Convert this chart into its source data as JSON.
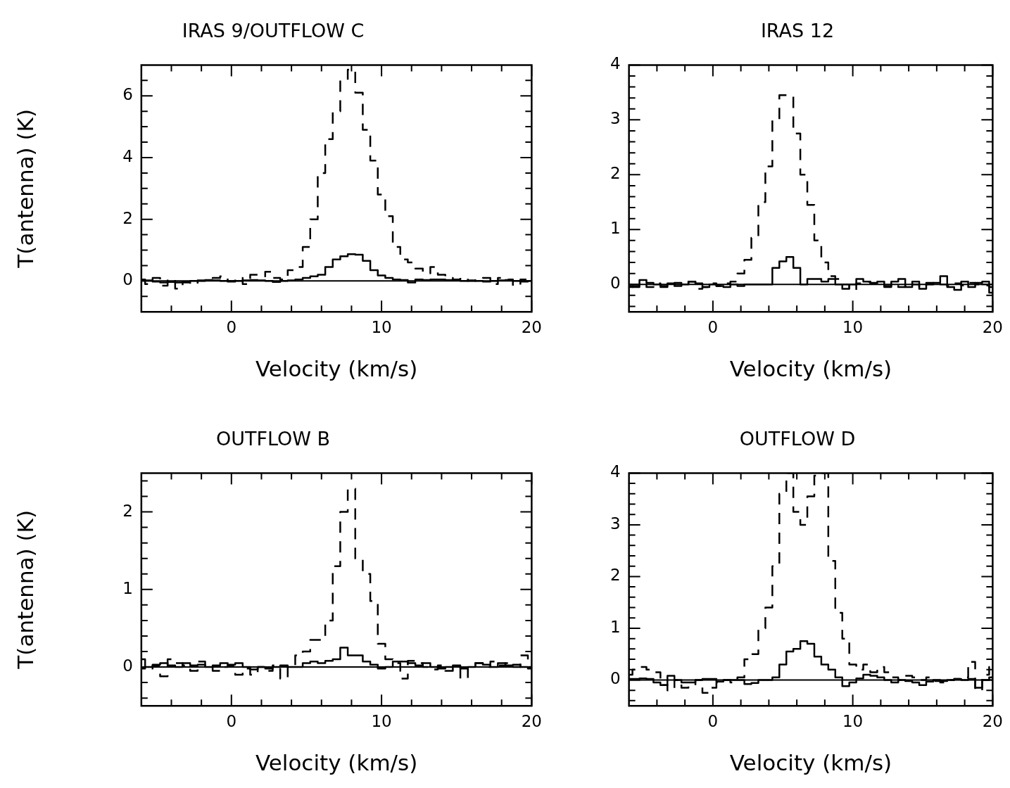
{
  "chart_data": [
    {
      "type": "step",
      "title": "IRAS 9/OUTFLOW C",
      "xlabel": "Velocity (km/s)",
      "ylabel": "T(antenna) (K)",
      "x": [
        -6,
        -5.5,
        -5,
        -4.5,
        -4,
        -3.5,
        -3,
        -2.5,
        -2,
        -1.5,
        -1,
        -0.5,
        0,
        0.5,
        1,
        1.5,
        2,
        2.5,
        3,
        3.5,
        4,
        4.5,
        5,
        5.5,
        6,
        6.5,
        7,
        7.5,
        8,
        8.5,
        9,
        9.5,
        10,
        10.5,
        11,
        11.5,
        12,
        12.5,
        13,
        13.5,
        14,
        14.5,
        15,
        15.5,
        16,
        16.5,
        17,
        17.5,
        18,
        18.5,
        19,
        19.5,
        20
      ],
      "series": [
        {
          "color": "#000000",
          "line_style": "dashed",
          "values": [
            0.05,
            -0.1,
            0.1,
            -0.15,
            0.05,
            -0.25,
            -0.05,
            -0.1,
            0,
            0.05,
            0.1,
            0.15,
            0,
            0.1,
            -0.1,
            0.2,
            0.15,
            0.3,
            0.1,
            0.05,
            0.35,
            0.45,
            1.1,
            2,
            3.5,
            4.6,
            5.5,
            6.5,
            6.85,
            6.1,
            4.9,
            3.9,
            2.8,
            2.1,
            1.1,
            0.7,
            0.6,
            0.4,
            0.25,
            0.45,
            0.2,
            0.1,
            0.05,
            0.1,
            0,
            0.05,
            0.1,
            -0.1,
            0.1,
            0.05,
            -0.15,
            0.05,
            0.05
          ]
        },
        {
          "color": "#000000",
          "line_style": "solid",
          "values": [
            0.03,
            0.02,
            -0.02,
            -0.05,
            -0.03,
            -0.05,
            -0.03,
            0,
            0.02,
            0.03,
            0.02,
            0,
            -0.02,
            0,
            0.02,
            0.03,
            0.02,
            0,
            -0.03,
            0,
            0.02,
            0.05,
            0.1,
            0.15,
            0.2,
            0.45,
            0.7,
            0.8,
            0.87,
            0.85,
            0.65,
            0.35,
            0.18,
            0.1,
            0.05,
            0.03,
            -0.05,
            0.05,
            0.03,
            0.05,
            0.05,
            0.03,
            0.02,
            0,
            0.02,
            0,
            -0.02,
            0,
            0.02,
            0.03,
            0,
            -0.02,
            0
          ]
        }
      ],
      "xlim": [
        -6,
        20
      ],
      "ylim": [
        -1,
        7
      ],
      "xticks": [
        {
          "value": -4,
          "label": null
        },
        {
          "value": -2,
          "label": null
        },
        0,
        {
          "value": 2,
          "label": null
        },
        {
          "value": 4,
          "label": null
        },
        {
          "value": 6,
          "label": null
        },
        {
          "value": 8,
          "label": null
        },
        10,
        {
          "value": 12,
          "label": null
        },
        {
          "value": 14,
          "label": null
        },
        {
          "value": 16,
          "label": null
        },
        {
          "value": 18,
          "label": null
        },
        20
      ],
      "yticks": [
        {
          "value": -0.5,
          "label": null
        },
        0,
        {
          "value": 0.5,
          "label": null
        },
        {
          "value": 1,
          "label": null
        },
        {
          "value": 1.5,
          "label": null
        },
        2,
        {
          "value": 2.5,
          "label": null
        },
        {
          "value": 3,
          "label": null
        },
        {
          "value": 3.5,
          "label": null
        },
        4,
        {
          "value": 4.5,
          "label": null
        },
        {
          "value": 5,
          "label": null
        },
        {
          "value": 5.5,
          "label": null
        },
        6,
        {
          "value": 6.5,
          "label": null
        }
      ],
      "ref_lines": [
        {
          "axis": "y",
          "value": 0,
          "color": "#000000"
        }
      ]
    },
    {
      "type": "step",
      "title": "IRAS 12",
      "xlabel": "Velocity (km/s)",
      "x": [
        -6,
        -5.5,
        -5,
        -4.5,
        -4,
        -3.5,
        -3,
        -2.5,
        -2,
        -1.5,
        -1,
        -0.5,
        0,
        0.5,
        1,
        1.5,
        2,
        2.5,
        3,
        3.5,
        4,
        4.5,
        5,
        5.5,
        6,
        6.5,
        7,
        7.5,
        8,
        8.5,
        9,
        9.5,
        10,
        10.5,
        11,
        11.5,
        12,
        12.5,
        13,
        13.5,
        14,
        14.5,
        15,
        15.5,
        16,
        16.5,
        17,
        17.5,
        18,
        18.5,
        19,
        19.5,
        20
      ],
      "series": [
        {
          "color": "#000000",
          "line_style": "dashed",
          "values": [
            -0.05,
            -0.03,
            0,
            -0.05,
            0.02,
            -0.03,
            0,
            0.03,
            -0.02,
            0.05,
            -0.08,
            -0.05,
            0.02,
            -0.03,
            0.02,
            0.05,
            0.2,
            0.45,
            0.85,
            1.5,
            2.15,
            3,
            3.45,
            3.45,
            2.75,
            2,
            1.45,
            0.8,
            0.4,
            0.15,
            0.1,
            0,
            -0.1,
            0.02,
            0.05,
            0.02,
            0,
            -0.03,
            0.02,
            -0.05,
            0.02,
            0,
            -0.05,
            0.03,
            -0.02,
            0,
            -0.03,
            0.02,
            -0.02,
            0.03,
            0,
            -0.02,
            -0.05
          ]
        },
        {
          "color": "#000000",
          "line_style": "solid",
          "values": [
            -0.03,
            -0.05,
            0.08,
            0.03,
            0,
            -0.05,
            0.02,
            -0.03,
            0,
            0.05,
            0.02,
            -0.05,
            0,
            -0.03,
            -0.05,
            0,
            -0.03,
            0,
            0,
            0,
            0,
            0.3,
            0.42,
            0.5,
            0.3,
            0,
            0.1,
            0.1,
            0.05,
            0.1,
            0,
            -0.08,
            0,
            0.1,
            0.05,
            0.03,
            0.05,
            -0.05,
            0.05,
            0.1,
            -0.05,
            0.05,
            -0.08,
            0,
            0.03,
            0.15,
            -0.05,
            -0.1,
            0.05,
            -0.05,
            0.03,
            0.05,
            -0.15
          ]
        }
      ],
      "xlim": [
        -6,
        20
      ],
      "ylim": [
        -0.5,
        4
      ],
      "xticks": [
        {
          "value": -4,
          "label": null
        },
        {
          "value": -2,
          "label": null
        },
        0,
        {
          "value": 2,
          "label": null
        },
        {
          "value": 4,
          "label": null
        },
        {
          "value": 6,
          "label": null
        },
        {
          "value": 8,
          "label": null
        },
        10,
        {
          "value": 12,
          "label": null
        },
        {
          "value": 14,
          "label": null
        },
        {
          "value": 16,
          "label": null
        },
        {
          "value": 18,
          "label": null
        },
        20
      ],
      "yticks": [
        {
          "value": -0.4,
          "label": null
        },
        {
          "value": -0.2,
          "label": null
        },
        0,
        {
          "value": 0.2,
          "label": null
        },
        {
          "value": 0.4,
          "label": null
        },
        {
          "value": 0.6,
          "label": null
        },
        {
          "value": 0.8,
          "label": null
        },
        1,
        {
          "value": 1.2,
          "label": null
        },
        {
          "value": 1.4,
          "label": null
        },
        {
          "value": 1.6,
          "label": null
        },
        {
          "value": 1.8,
          "label": null
        },
        2,
        {
          "value": 2.2,
          "label": null
        },
        {
          "value": 2.4,
          "label": null
        },
        {
          "value": 2.6,
          "label": null
        },
        {
          "value": 2.8,
          "label": null
        },
        3,
        {
          "value": 3.2,
          "label": null
        },
        {
          "value": 3.4,
          "label": null
        },
        {
          "value": 3.6,
          "label": null
        },
        {
          "value": 3.8,
          "label": null
        },
        4
      ],
      "ref_lines": [
        {
          "axis": "y",
          "value": 0,
          "color": "#000000"
        }
      ]
    },
    {
      "type": "step",
      "title": "OUTFLOW B",
      "xlabel": "Velocity (km/s)",
      "ylabel": "T(antenna) (K)",
      "x": [
        -6,
        -5.5,
        -5,
        -4.5,
        -4,
        -3.5,
        -3,
        -2.5,
        -2,
        -1.5,
        -1,
        -0.5,
        0,
        0.5,
        1,
        1.5,
        2,
        2.5,
        3,
        3.5,
        4,
        4.5,
        5,
        5.5,
        6,
        6.5,
        7,
        7.5,
        8,
        8.5,
        9,
        9.5,
        10,
        10.5,
        11,
        11.5,
        12,
        12.5,
        13,
        13.5,
        14,
        14.5,
        15,
        15.5,
        16,
        16.5,
        17,
        17.5,
        18,
        18.5,
        19,
        19.5,
        20
      ],
      "series": [
        {
          "color": "#000000",
          "line_style": "dashed",
          "values": [
            0.1,
            -0.02,
            0.02,
            -0.12,
            0.1,
            0.05,
            0.02,
            -0.05,
            0.07,
            0,
            -0.05,
            0,
            0.02,
            -0.1,
            -0.02,
            -0.1,
            0,
            -0.05,
            0.02,
            -0.15,
            0.02,
            0.15,
            0.2,
            0.35,
            0.35,
            0.6,
            1.3,
            2,
            2.3,
            1.4,
            1.2,
            0.85,
            0.3,
            0.1,
            0.05,
            -0.15,
            0.08,
            0.05,
            0,
            -0.03,
            0.02,
            -0.05,
            0,
            -0.15,
            0.02,
            0.05,
            0,
            0.07,
            0.02,
            0.05,
            0,
            0.15,
            0
          ]
        },
        {
          "color": "#000000",
          "line_style": "solid",
          "values": [
            -0.02,
            0,
            0.03,
            0.05,
            0.02,
            0,
            0.05,
            0.02,
            0.03,
            0,
            0.02,
            0.05,
            0.03,
            0.05,
            0,
            -0.03,
            0,
            -0.02,
            0,
            0.02,
            0,
            0,
            0.05,
            0.07,
            0.05,
            0.08,
            0.1,
            0.25,
            0.15,
            0.15,
            0.07,
            0.03,
            -0.02,
            0,
            0.07,
            0.07,
            0.05,
            0.02,
            0.05,
            0,
            -0.02,
            0,
            0.02,
            -0.02,
            0,
            0.05,
            0.03,
            0,
            0.05,
            0.02,
            0.03,
            0,
            -0.02
          ]
        }
      ],
      "xlim": [
        -6,
        20
      ],
      "ylim": [
        -0.5,
        2.5
      ],
      "xticks": [
        {
          "value": -4,
          "label": null
        },
        {
          "value": -2,
          "label": null
        },
        0,
        {
          "value": 2,
          "label": null
        },
        {
          "value": 4,
          "label": null
        },
        {
          "value": 6,
          "label": null
        },
        {
          "value": 8,
          "label": null
        },
        10,
        {
          "value": 12,
          "label": null
        },
        {
          "value": 14,
          "label": null
        },
        {
          "value": 16,
          "label": null
        },
        {
          "value": 18,
          "label": null
        },
        20
      ],
      "yticks": [
        {
          "value": -0.4,
          "label": null
        },
        {
          "value": -0.2,
          "label": null
        },
        0,
        {
          "value": 0.2,
          "label": null
        },
        {
          "value": 0.4,
          "label": null
        },
        {
          "value": 0.6,
          "label": null
        },
        {
          "value": 0.8,
          "label": null
        },
        1,
        {
          "value": 1.2,
          "label": null
        },
        {
          "value": 1.4,
          "label": null
        },
        {
          "value": 1.6,
          "label": null
        },
        {
          "value": 1.8,
          "label": null
        },
        2,
        {
          "value": 2.2,
          "label": null
        },
        {
          "value": 2.4,
          "label": null
        }
      ],
      "ref_lines": [
        {
          "axis": "y",
          "value": 0,
          "color": "#000000"
        }
      ]
    },
    {
      "type": "step",
      "title": "OUTFLOW D",
      "xlabel": "Velocity (km/s)",
      "x": [
        -6,
        -5.5,
        -5,
        -4.5,
        -4,
        -3.5,
        -3,
        -2.5,
        -2,
        -1.5,
        -1,
        -0.5,
        0,
        0.5,
        1,
        1.5,
        2,
        2.5,
        3,
        3.5,
        4,
        4.5,
        5,
        5.5,
        6,
        6.5,
        7,
        7.5,
        8,
        8.5,
        9,
        9.5,
        10,
        10.5,
        11,
        11.5,
        12,
        12.5,
        13,
        13.5,
        14,
        14.5,
        15,
        15.5,
        16,
        16.5,
        17,
        17.5,
        18,
        18.5,
        19,
        19.5,
        20
      ],
      "series": [
        {
          "color": "#000000",
          "line_style": "dashed",
          "values": [
            0.1,
            0.2,
            0.25,
            0.2,
            0.15,
            -0.1,
            -0.2,
            0,
            -0.15,
            -0.1,
            0,
            -0.25,
            -0.15,
            -0.05,
            0,
            -0.05,
            0.05,
            0.4,
            0.5,
            1,
            1.4,
            2.2,
            3.6,
            4,
            3.25,
            3,
            3.55,
            3.95,
            4,
            2.3,
            1.3,
            0.8,
            0.3,
            0.2,
            0.3,
            0.15,
            0.25,
            0.15,
            0.05,
            0,
            0.08,
            0.05,
            0,
            0.05,
            -0.02,
            -0.05,
            0,
            0.02,
            0.05,
            0.35,
            -0.2,
            0.1,
            0.25
          ]
        },
        {
          "color": "#000000",
          "line_style": "solid",
          "values": [
            0.02,
            0.02,
            0.03,
            0.02,
            -0.05,
            -0.1,
            0.08,
            0,
            -0.05,
            -0.05,
            0,
            0.02,
            0.02,
            -0.03,
            0,
            0,
            0,
            -0.08,
            -0.06,
            0,
            0,
            0.05,
            0.3,
            0.55,
            0.6,
            0.75,
            0.7,
            0.45,
            0.3,
            0.2,
            0.05,
            -0.12,
            -0.05,
            0.03,
            0.1,
            0.08,
            0.05,
            0,
            -0.05,
            0,
            -0.02,
            -0.05,
            -0.1,
            -0.03,
            0,
            -0.02,
            0,
            0.02,
            0,
            0.02,
            -0.15,
            0,
            0.05
          ]
        }
      ],
      "xlim": [
        -6,
        20
      ],
      "ylim": [
        -0.5,
        4
      ],
      "xticks": [
        {
          "value": -4,
          "label": null
        },
        {
          "value": -2,
          "label": null
        },
        0,
        {
          "value": 2,
          "label": null
        },
        {
          "value": 4,
          "label": null
        },
        {
          "value": 6,
          "label": null
        },
        {
          "value": 8,
          "label": null
        },
        10,
        {
          "value": 12,
          "label": null
        },
        {
          "value": 14,
          "label": null
        },
        {
          "value": 16,
          "label": null
        },
        {
          "value": 18,
          "label": null
        },
        20
      ],
      "yticks": [
        {
          "value": -0.4,
          "label": null
        },
        {
          "value": -0.2,
          "label": null
        },
        0,
        {
          "value": 0.2,
          "label": null
        },
        {
          "value": 0.4,
          "label": null
        },
        {
          "value": 0.6,
          "label": null
        },
        {
          "value": 0.8,
          "label": null
        },
        1,
        {
          "value": 1.2,
          "label": null
        },
        {
          "value": 1.4,
          "label": null
        },
        {
          "value": 1.6,
          "label": null
        },
        {
          "value": 1.8,
          "label": null
        },
        2,
        {
          "value": 2.2,
          "label": null
        },
        {
          "value": 2.4,
          "label": null
        },
        {
          "value": 2.6,
          "label": null
        },
        {
          "value": 2.8,
          "label": null
        },
        3,
        {
          "value": 3.2,
          "label": null
        },
        {
          "value": 3.4,
          "label": null
        },
        {
          "value": 3.6,
          "label": null
        },
        {
          "value": 3.8,
          "label": null
        },
        4
      ],
      "ref_lines": [
        {
          "axis": "y",
          "value": 0,
          "color": "#000000"
        }
      ]
    }
  ]
}
